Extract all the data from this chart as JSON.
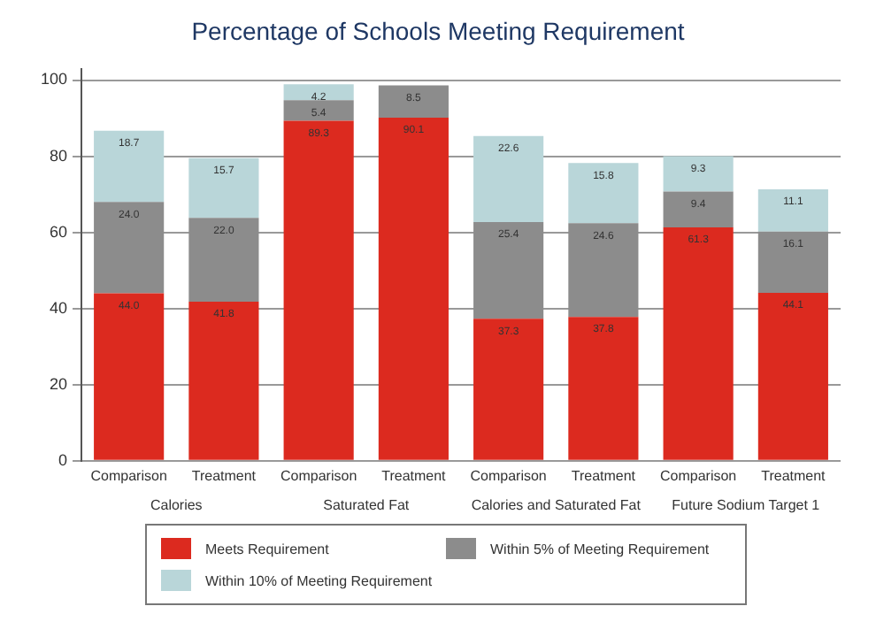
{
  "chart_data": {
    "type": "bar",
    "title": "Percentage of Schools Meeting Requirement",
    "categories": [
      "Comparison",
      "Treatment",
      "Comparison",
      "Treatment",
      "Comparison",
      "Treatment",
      "Comparison",
      "Treatment"
    ],
    "annotations": [
      "Calories",
      "Saturated Fat",
      "Calories and Saturated Fat",
      "Future Sodium Target 1"
    ],
    "stacked": true,
    "series": [
      {
        "name": "Meets Requirement",
        "color": "#dc2a1f",
        "values": [
          44.0,
          41.8,
          89.3,
          90.1,
          37.3,
          37.8,
          61.3,
          44.1
        ],
        "value_labels": [
          "44.0",
          "41.8",
          "89.3",
          "90.1",
          "37.3",
          "37.8",
          "61.3",
          "44.1"
        ]
      },
      {
        "name": "Within 5% of Meeting Requirement",
        "color": "#8c8c8c",
        "values": [
          24.0,
          22.0,
          5.4,
          8.5,
          25.4,
          24.6,
          9.4,
          16.1
        ],
        "value_labels": [
          "24.0",
          "22.0",
          "5.4",
          "8.5",
          "25.4",
          "24.6",
          "9.4",
          "16.1"
        ]
      },
      {
        "name": "Within 10% of Meeting Requirement",
        "color": "#b9d6d9",
        "values": [
          18.7,
          15.7,
          4.2,
          null,
          22.6,
          15.8,
          9.3,
          11.1
        ],
        "value_labels": [
          "18.7",
          "15.7",
          "4.2",
          null,
          "22.6",
          "15.8",
          "9.3",
          "11.1"
        ]
      }
    ],
    "ylim": [
      0,
      103
    ],
    "yticks": [
      0,
      20,
      40,
      60,
      80,
      100
    ],
    "grid": "y",
    "legend": "bottom"
  }
}
